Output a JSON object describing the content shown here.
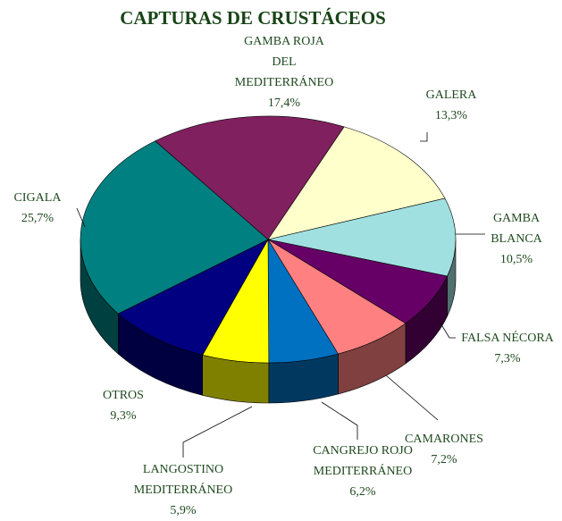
{
  "chart_data": {
    "type": "pie3d",
    "title": "CAPTURAS  DE  CRUSTÁCEOS",
    "categories": [
      [
        "GAMBA ROJA",
        "DEL",
        "MEDITERRÁNEO"
      ],
      [
        "GALERA"
      ],
      [
        "GAMBA",
        "BLANCA"
      ],
      [
        "FALSA NÉCORA"
      ],
      [
        "CAMARONES"
      ],
      [
        "CANGREJO ROJO",
        "MEDITERRÁNEO"
      ],
      [
        "LANGOSTINO",
        "MEDITERRÁNEO"
      ],
      [
        "OTROS"
      ],
      [
        "CIGALA"
      ]
    ],
    "values": [
      17.4,
      13.3,
      10.5,
      7.3,
      7.2,
      6.2,
      5.9,
      9.3,
      25.7
    ],
    "value_labels": [
      "17,4%",
      "13,3%",
      "10,5%",
      "7,3%",
      "7,2%",
      "6,2%",
      "5,9%",
      "9,3%",
      "25,7%"
    ],
    "colors": [
      "#80205f",
      "#ffffcc",
      "#a0e0e0",
      "#660066",
      "#ff8080",
      "#0070c0",
      "#ffff00",
      "#000080",
      "#008080"
    ]
  }
}
